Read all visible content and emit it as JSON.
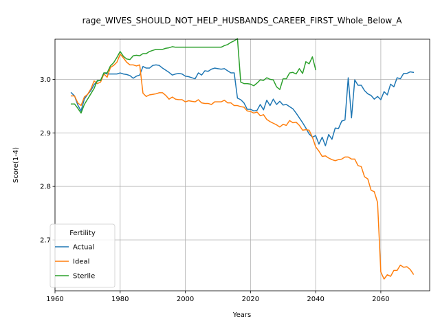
{
  "chart_data": {
    "type": "line",
    "title": "rage_WIVES_SHOULD_NOT_HELP_HUSBANDS_CAREER_FIRST_Whole_Below_A",
    "xlabel": "Years",
    "ylabel": "Score(1-4)",
    "xlim": [
      1960,
      2075
    ],
    "ylim": [
      2.605,
      3.075
    ],
    "xticks": [
      1960,
      1980,
      2000,
      2020,
      2040,
      2060
    ],
    "yticks": [
      2.7,
      2.8,
      2.9,
      3.0
    ],
    "ytick_labels": [
      "2.7",
      "2.8",
      "2.9",
      "3.0"
    ],
    "grid": true,
    "legend": {
      "title": "Fertility",
      "placement": "lower-left"
    },
    "series": [
      {
        "name": "Actual",
        "color": "#1f77b4",
        "points": [
          [
            1965,
            2.975
          ],
          [
            1966,
            2.969
          ],
          [
            1967,
            2.952
          ],
          [
            1968,
            2.941
          ],
          [
            1969,
            2.963
          ],
          [
            1970,
            2.972
          ],
          [
            1971,
            2.979
          ],
          [
            1972,
            2.99
          ],
          [
            1973,
            2.997
          ],
          [
            1974,
            2.998
          ],
          [
            1975,
            3.012
          ],
          [
            1976,
            3.01
          ],
          [
            1977,
            3.01
          ],
          [
            1978,
            3.01
          ],
          [
            1979,
            3.01
          ],
          [
            1980,
            3.012
          ],
          [
            1981,
            3.01
          ],
          [
            1982,
            3.009
          ],
          [
            1983,
            3.007
          ],
          [
            1984,
            3.002
          ],
          [
            1985,
            3.006
          ],
          [
            1986,
            3.008
          ],
          [
            1987,
            3.024
          ],
          [
            1988,
            3.021
          ],
          [
            1989,
            3.021
          ],
          [
            1990,
            3.026
          ],
          [
            1991,
            3.027
          ],
          [
            1992,
            3.026
          ],
          [
            1993,
            3.021
          ],
          [
            1994,
            3.017
          ],
          [
            1995,
            3.013
          ],
          [
            1996,
            3.008
          ],
          [
            1997,
            3.01
          ],
          [
            1998,
            3.011
          ],
          [
            1999,
            3.01
          ],
          [
            2000,
            3.006
          ],
          [
            2001,
            3.005
          ],
          [
            2002,
            3.003
          ],
          [
            2003,
            3.001
          ],
          [
            2004,
            3.012
          ],
          [
            2005,
            3.008
          ],
          [
            2006,
            3.016
          ],
          [
            2007,
            3.015
          ],
          [
            2008,
            3.019
          ],
          [
            2009,
            3.021
          ],
          [
            2010,
            3.02
          ],
          [
            2011,
            3.019
          ],
          [
            2012,
            3.02
          ],
          [
            2013,
            3.016
          ],
          [
            2014,
            3.012
          ],
          [
            2015,
            3.012
          ],
          [
            2016,
            2.965
          ],
          [
            2017,
            2.962
          ],
          [
            2018,
            2.956
          ],
          [
            2019,
            2.944
          ],
          [
            2020,
            2.944
          ],
          [
            2021,
            2.941
          ],
          [
            2022,
            2.942
          ],
          [
            2023,
            2.953
          ],
          [
            2024,
            2.943
          ],
          [
            2025,
            2.961
          ],
          [
            2026,
            2.951
          ],
          [
            2027,
            2.963
          ],
          [
            2028,
            2.953
          ],
          [
            2029,
            2.959
          ],
          [
            2030,
            2.952
          ],
          [
            2031,
            2.953
          ],
          [
            2032,
            2.949
          ],
          [
            2033,
            2.945
          ],
          [
            2034,
            2.937
          ],
          [
            2035,
            2.928
          ],
          [
            2036,
            2.919
          ],
          [
            2037,
            2.909
          ],
          [
            2038,
            2.898
          ],
          [
            2039,
            2.892
          ],
          [
            2040,
            2.895
          ],
          [
            2041,
            2.879
          ],
          [
            2042,
            2.892
          ],
          [
            2043,
            2.876
          ],
          [
            2044,
            2.897
          ],
          [
            2045,
            2.888
          ],
          [
            2046,
            2.909
          ],
          [
            2047,
            2.908
          ],
          [
            2048,
            2.922
          ],
          [
            2049,
            2.924
          ],
          [
            2050,
            3.003
          ],
          [
            2051,
            2.928
          ],
          [
            2052,
            2.999
          ],
          [
            2053,
            2.989
          ],
          [
            2054,
            2.989
          ],
          [
            2055,
            2.979
          ],
          [
            2056,
            2.973
          ],
          [
            2057,
            2.97
          ],
          [
            2058,
            2.963
          ],
          [
            2059,
            2.968
          ],
          [
            2060,
            2.962
          ],
          [
            2061,
            2.977
          ],
          [
            2062,
            2.971
          ],
          [
            2063,
            2.991
          ],
          [
            2064,
            2.986
          ],
          [
            2065,
            3.003
          ],
          [
            2066,
            3.001
          ],
          [
            2067,
            3.011
          ],
          [
            2068,
            3.011
          ],
          [
            2069,
            3.014
          ],
          [
            2070,
            3.013
          ]
        ]
      },
      {
        "name": "Ideal",
        "color": "#ff7f0e",
        "points": [
          [
            1965,
            2.969
          ],
          [
            1966,
            2.969
          ],
          [
            1967,
            2.956
          ],
          [
            1968,
            2.951
          ],
          [
            1969,
            2.967
          ],
          [
            1970,
            2.972
          ],
          [
            1971,
            2.982
          ],
          [
            1972,
            2.997
          ],
          [
            1973,
            2.992
          ],
          [
            1974,
            2.995
          ],
          [
            1975,
            3.01
          ],
          [
            1976,
            3.004
          ],
          [
            1977,
            3.022
          ],
          [
            1978,
            3.026
          ],
          [
            1979,
            3.032
          ],
          [
            1980,
            3.047
          ],
          [
            1981,
            3.04
          ],
          [
            1982,
            3.032
          ],
          [
            1983,
            3.027
          ],
          [
            1984,
            3.027
          ],
          [
            1985,
            3.025
          ],
          [
            1986,
            3.027
          ],
          [
            1987,
            2.974
          ],
          [
            1988,
            2.968
          ],
          [
            1989,
            2.971
          ],
          [
            1990,
            2.972
          ],
          [
            1991,
            2.973
          ],
          [
            1992,
            2.975
          ],
          [
            1993,
            2.975
          ],
          [
            1994,
            2.97
          ],
          [
            1995,
            2.963
          ],
          [
            1996,
            2.967
          ],
          [
            1997,
            2.963
          ],
          [
            1998,
            2.962
          ],
          [
            1999,
            2.962
          ],
          [
            2000,
            2.958
          ],
          [
            2001,
            2.96
          ],
          [
            2002,
            2.959
          ],
          [
            2003,
            2.958
          ],
          [
            2004,
            2.962
          ],
          [
            2005,
            2.956
          ],
          [
            2006,
            2.955
          ],
          [
            2007,
            2.955
          ],
          [
            2008,
            2.953
          ],
          [
            2009,
            2.958
          ],
          [
            2010,
            2.958
          ],
          [
            2011,
            2.958
          ],
          [
            2012,
            2.961
          ],
          [
            2013,
            2.956
          ],
          [
            2014,
            2.956
          ],
          [
            2015,
            2.951
          ],
          [
            2016,
            2.951
          ],
          [
            2017,
            2.949
          ],
          [
            2018,
            2.948
          ],
          [
            2019,
            2.941
          ],
          [
            2020,
            2.94
          ],
          [
            2021,
            2.937
          ],
          [
            2022,
            2.939
          ],
          [
            2023,
            2.932
          ],
          [
            2024,
            2.934
          ],
          [
            2025,
            2.925
          ],
          [
            2026,
            2.921
          ],
          [
            2027,
            2.918
          ],
          [
            2028,
            2.915
          ],
          [
            2029,
            2.911
          ],
          [
            2030,
            2.916
          ],
          [
            2031,
            2.914
          ],
          [
            2032,
            2.923
          ],
          [
            2033,
            2.919
          ],
          [
            2034,
            2.92
          ],
          [
            2035,
            2.914
          ],
          [
            2036,
            2.905
          ],
          [
            2037,
            2.906
          ],
          [
            2038,
            2.905
          ],
          [
            2039,
            2.892
          ],
          [
            2040,
            2.874
          ],
          [
            2041,
            2.866
          ],
          [
            2042,
            2.856
          ],
          [
            2043,
            2.857
          ],
          [
            2044,
            2.853
          ],
          [
            2045,
            2.85
          ],
          [
            2046,
            2.848
          ],
          [
            2047,
            2.85
          ],
          [
            2048,
            2.851
          ],
          [
            2049,
            2.855
          ],
          [
            2050,
            2.855
          ],
          [
            2051,
            2.851
          ],
          [
            2052,
            2.851
          ],
          [
            2053,
            2.839
          ],
          [
            2054,
            2.837
          ],
          [
            2055,
            2.818
          ],
          [
            2056,
            2.814
          ],
          [
            2057,
            2.793
          ],
          [
            2058,
            2.79
          ],
          [
            2059,
            2.77
          ],
          [
            2060,
            2.64
          ],
          [
            2061,
            2.627
          ],
          [
            2062,
            2.635
          ],
          [
            2063,
            2.632
          ],
          [
            2064,
            2.643
          ],
          [
            2065,
            2.643
          ],
          [
            2066,
            2.653
          ],
          [
            2067,
            2.649
          ],
          [
            2068,
            2.65
          ],
          [
            2069,
            2.645
          ],
          [
            2070,
            2.636
          ]
        ]
      },
      {
        "name": "Sterile",
        "color": "#2ca02c",
        "points": [
          [
            1965,
            2.954
          ],
          [
            1966,
            2.954
          ],
          [
            1967,
            2.946
          ],
          [
            1968,
            2.937
          ],
          [
            1969,
            2.953
          ],
          [
            1970,
            2.963
          ],
          [
            1971,
            2.973
          ],
          [
            1972,
            2.983
          ],
          [
            1973,
            2.998
          ],
          [
            1974,
            2.998
          ],
          [
            1975,
            3.012
          ],
          [
            1976,
            3.012
          ],
          [
            1977,
            3.025
          ],
          [
            1978,
            3.031
          ],
          [
            1979,
            3.041
          ],
          [
            1980,
            3.052
          ],
          [
            1981,
            3.043
          ],
          [
            1982,
            3.038
          ],
          [
            1983,
            3.037
          ],
          [
            1984,
            3.044
          ],
          [
            1985,
            3.045
          ],
          [
            1986,
            3.044
          ],
          [
            1987,
            3.048
          ],
          [
            1988,
            3.048
          ],
          [
            1989,
            3.052
          ],
          [
            1990,
            3.054
          ],
          [
            1991,
            3.056
          ],
          [
            1992,
            3.056
          ],
          [
            1993,
            3.056
          ],
          [
            1994,
            3.058
          ],
          [
            1995,
            3.059
          ],
          [
            1996,
            3.061
          ],
          [
            1997,
            3.06
          ],
          [
            1998,
            3.06
          ],
          [
            1999,
            3.06
          ],
          [
            2000,
            3.06
          ],
          [
            2001,
            3.06
          ],
          [
            2002,
            3.06
          ],
          [
            2003,
            3.06
          ],
          [
            2004,
            3.06
          ],
          [
            2005,
            3.06
          ],
          [
            2006,
            3.06
          ],
          [
            2007,
            3.06
          ],
          [
            2008,
            3.06
          ],
          [
            2009,
            3.06
          ],
          [
            2010,
            3.06
          ],
          [
            2011,
            3.06
          ],
          [
            2012,
            3.063
          ],
          [
            2013,
            3.065
          ],
          [
            2014,
            3.069
          ],
          [
            2015,
            3.072
          ],
          [
            2016,
            3.076
          ],
          [
            2017,
            2.995
          ],
          [
            2018,
            2.992
          ],
          [
            2019,
            2.992
          ],
          [
            2020,
            2.991
          ],
          [
            2021,
            2.988
          ],
          [
            2022,
            2.993
          ],
          [
            2023,
            2.999
          ],
          [
            2024,
            2.998
          ],
          [
            2025,
            3.003
          ],
          [
            2026,
            3.0
          ],
          [
            2027,
            2.999
          ],
          [
            2028,
            2.986
          ],
          [
            2029,
            2.981
          ],
          [
            2030,
            3.001
          ],
          [
            2031,
            3.001
          ],
          [
            2032,
            3.012
          ],
          [
            2033,
            3.013
          ],
          [
            2034,
            3.01
          ],
          [
            2035,
            3.02
          ],
          [
            2036,
            3.011
          ],
          [
            2037,
            3.033
          ],
          [
            2038,
            3.029
          ],
          [
            2039,
            3.042
          ],
          [
            2040,
            3.018
          ]
        ]
      }
    ]
  }
}
